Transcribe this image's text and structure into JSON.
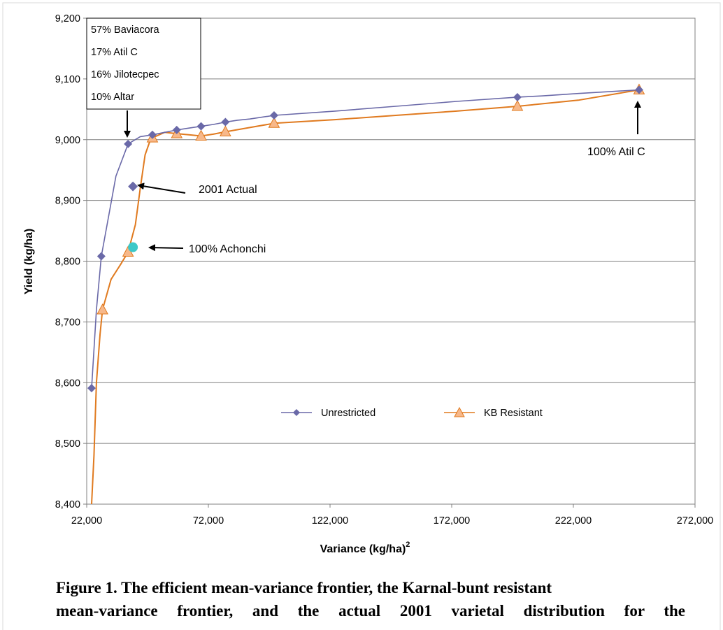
{
  "chart_data": {
    "type": "line",
    "xlabel": "Variance (kg/ha)",
    "xlabel_superscript": "2",
    "ylabel": "Yield (kg/ha)",
    "xlim": [
      22000,
      272000
    ],
    "ylim": [
      8400,
      9200
    ],
    "x_ticks": [
      22000,
      72000,
      122000,
      172000,
      222000,
      272000
    ],
    "x_tick_labels": [
      "22,000",
      "72,000",
      "122,000",
      "172,000",
      "222,000",
      "272,000"
    ],
    "y_ticks": [
      8400,
      8500,
      8600,
      8700,
      8800,
      8900,
      9000,
      9100,
      9200
    ],
    "y_tick_labels": [
      "8,400",
      "8,500",
      "8,600",
      "8,700",
      "8,800",
      "8,900",
      "9,000",
      "9,100",
      "9,200"
    ],
    "grid": "horizontal",
    "legend_position": "center",
    "series": [
      {
        "name": "Unrestricted",
        "color": "#6A69A8",
        "marker": "diamond",
        "line_points": [
          [
            24000,
            8591
          ],
          [
            26000,
            8720
          ],
          [
            28000,
            8808
          ],
          [
            34000,
            8940
          ],
          [
            39000,
            8993
          ],
          [
            44000,
            9005
          ],
          [
            49000,
            9008
          ],
          [
            54000,
            9012
          ],
          [
            59000,
            9016
          ],
          [
            64000,
            9019
          ],
          [
            69000,
            9022
          ],
          [
            74000,
            9025
          ],
          [
            79000,
            9029
          ],
          [
            84000,
            9032
          ],
          [
            89000,
            9034
          ],
          [
            99000,
            9040
          ],
          [
            124000,
            9047
          ],
          [
            149000,
            9055
          ],
          [
            174000,
            9063
          ],
          [
            199000,
            9070
          ],
          [
            209000,
            9072
          ],
          [
            224000,
            9076
          ],
          [
            249000,
            9082
          ]
        ],
        "markers": [
          [
            24000,
            8591
          ],
          [
            28000,
            8808
          ],
          [
            39000,
            8993
          ],
          [
            49000,
            9008
          ],
          [
            59000,
            9016
          ],
          [
            69000,
            9022
          ],
          [
            79000,
            9029
          ],
          [
            99000,
            9040
          ],
          [
            199000,
            9070
          ],
          [
            249000,
            9082
          ]
        ]
      },
      {
        "name": "KB Resistant",
        "color": "#E07A1F",
        "marker_fill": "#F7B88A",
        "marker": "triangle",
        "line_points": [
          [
            24000,
            8400
          ],
          [
            25000,
            8480
          ],
          [
            26000,
            8600
          ],
          [
            27500,
            8680
          ],
          [
            28500,
            8720
          ],
          [
            32000,
            8770
          ],
          [
            36000,
            8795
          ],
          [
            39000,
            8815
          ],
          [
            42000,
            8860
          ],
          [
            44000,
            8920
          ],
          [
            46000,
            8975
          ],
          [
            48000,
            8998
          ],
          [
            49000,
            9003
          ],
          [
            54000,
            9012
          ],
          [
            59000,
            9010
          ],
          [
            64000,
            9008
          ],
          [
            69000,
            9006
          ],
          [
            74000,
            9009
          ],
          [
            79000,
            9013
          ],
          [
            89000,
            9020
          ],
          [
            99000,
            9027
          ],
          [
            124000,
            9033
          ],
          [
            149000,
            9040
          ],
          [
            174000,
            9047
          ],
          [
            199000,
            9055
          ],
          [
            224000,
            9065
          ],
          [
            249000,
            9082
          ]
        ],
        "markers": [
          [
            28500,
            8720
          ],
          [
            39000,
            8815
          ],
          [
            49000,
            9003
          ],
          [
            59000,
            9010
          ],
          [
            69000,
            9006
          ],
          [
            79000,
            9013
          ],
          [
            99000,
            9027
          ],
          [
            199000,
            9055
          ],
          [
            249000,
            9082
          ]
        ]
      }
    ],
    "highlight_points": [
      {
        "name": "2001 Actual",
        "x": 41000,
        "y": 8923,
        "marker": "diamond",
        "color": "#6A69A8"
      },
      {
        "name": "100% Achonchi",
        "x": 41000,
        "y": 8823,
        "marker": "circle",
        "color": "#3CC8C8"
      }
    ],
    "annotations": {
      "box_lines": [
        "57%  Baviacora",
        "17% Atil C",
        "16% Jilotecpec",
        "10% Altar"
      ],
      "actual_label": "2001 Actual",
      "achonchi_label": "100% Achonchi",
      "atil_label": "100% Atil C"
    }
  },
  "caption": {
    "line1": "Figure 1. The efficient mean-variance frontier, the Karnal-bunt resistant",
    "line2": "mean-variance frontier, and the actual 2001 varietal distribution for the"
  }
}
